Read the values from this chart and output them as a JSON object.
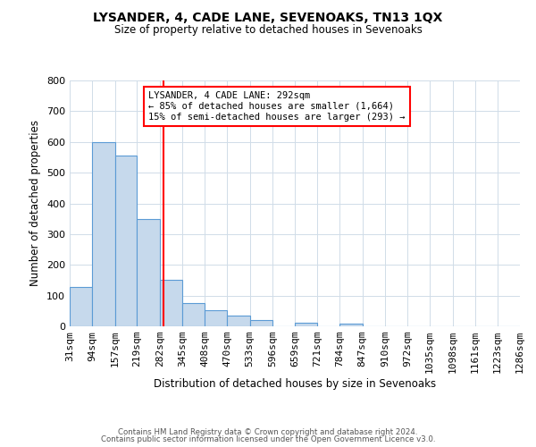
{
  "title": "LYSANDER, 4, CADE LANE, SEVENOAKS, TN13 1QX",
  "subtitle": "Size of property relative to detached houses in Sevenoaks",
  "xlabel": "Distribution of detached houses by size in Sevenoaks",
  "ylabel": "Number of detached properties",
  "bar_edges": [
    31,
    94,
    157,
    219,
    282,
    345,
    408,
    470,
    533,
    596,
    659,
    721,
    784,
    847,
    910,
    972,
    1035,
    1098,
    1161,
    1223,
    1286
  ],
  "bar_heights": [
    127,
    600,
    557,
    350,
    150,
    75,
    52,
    35,
    20,
    0,
    12,
    0,
    8,
    0,
    0,
    0,
    0,
    0,
    0,
    0
  ],
  "bar_color": "#c6d9ec",
  "bar_edge_color": "#5b9bd5",
  "property_line_x": 292,
  "property_line_color": "red",
  "annotation_title": "LYSANDER, 4 CADE LANE: 292sqm",
  "annotation_line1": "← 85% of detached houses are smaller (1,664)",
  "annotation_line2": "15% of semi-detached houses are larger (293) →",
  "tick_labels": [
    "31sqm",
    "94sqm",
    "157sqm",
    "219sqm",
    "282sqm",
    "345sqm",
    "408sqm",
    "470sqm",
    "533sqm",
    "596sqm",
    "659sqm",
    "721sqm",
    "784sqm",
    "847sqm",
    "910sqm",
    "972sqm",
    "1035sqm",
    "1098sqm",
    "1161sqm",
    "1223sqm",
    "1286sqm"
  ],
  "ylim": [
    0,
    800
  ],
  "footer1": "Contains HM Land Registry data © Crown copyright and database right 2024.",
  "footer2": "Contains public sector information licensed under the Open Government Licence v3.0.",
  "bg_color": "#ffffff",
  "grid_color": "#d0dce8"
}
